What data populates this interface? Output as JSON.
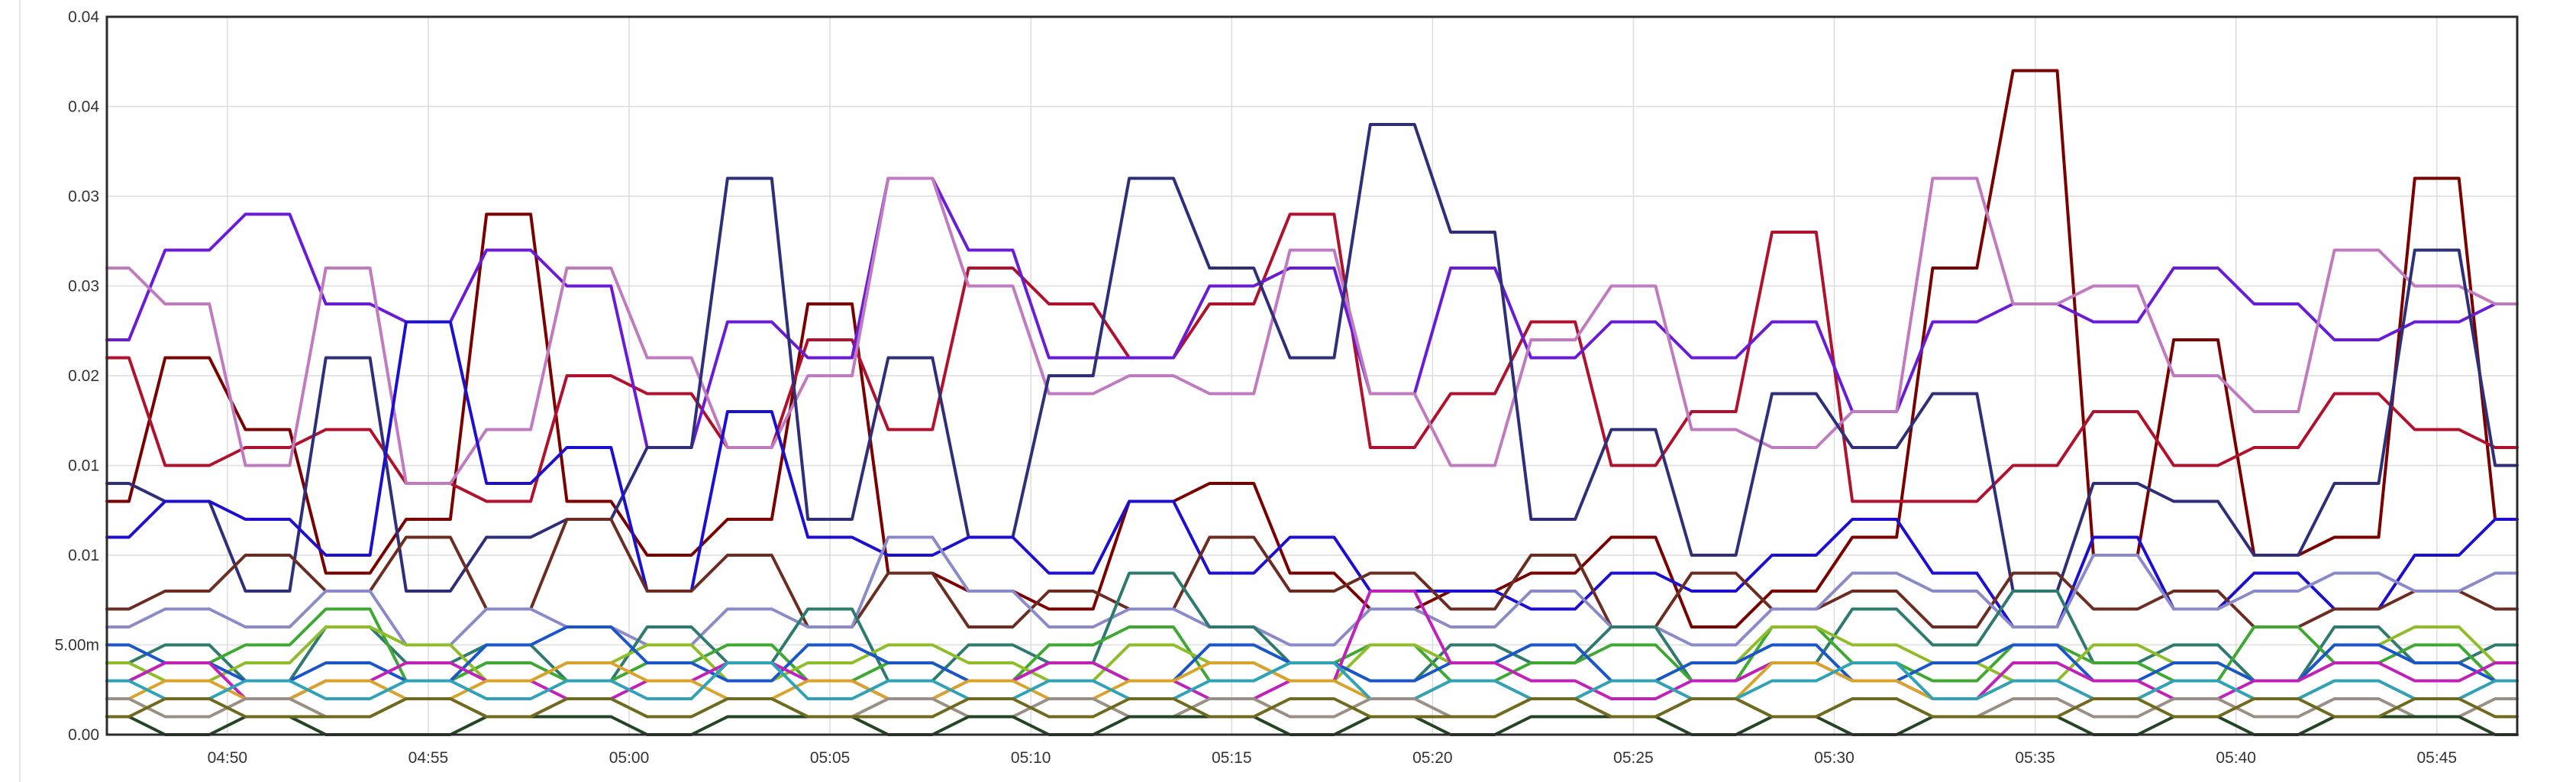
{
  "chart_data": {
    "type": "line",
    "title": "",
    "xlabel": "",
    "ylabel": "",
    "grid": true,
    "legend": "none",
    "y_scale": "linear",
    "ylim": [
      0,
      0.04
    ],
    "y_ticks": [
      {
        "value": 0,
        "label": "0.00"
      },
      {
        "value": 0.005,
        "label": "5.00m"
      },
      {
        "value": 0.01,
        "label": "0.01"
      },
      {
        "value": 0.015,
        "label": "0.01"
      },
      {
        "value": 0.02,
        "label": "0.02"
      },
      {
        "value": 0.025,
        "label": "0.03"
      },
      {
        "value": 0.03,
        "label": "0.03"
      },
      {
        "value": 0.035,
        "label": "0.04"
      },
      {
        "value": 0.04,
        "label": "0.04"
      }
    ],
    "x_range": [
      "04:47",
      "05:47"
    ],
    "x_ticks": [
      "04:50",
      "04:55",
      "05:00",
      "05:05",
      "05:10",
      "05:15",
      "05:20",
      "05:25",
      "05:30",
      "05:35",
      "05:40",
      "05:45"
    ],
    "x": [
      "04:47",
      "04:49",
      "04:51",
      "04:53",
      "04:55",
      "04:57",
      "04:59",
      "05:01",
      "05:03",
      "05:05",
      "05:07",
      "05:09",
      "05:11",
      "05:13",
      "05:15",
      "05:17",
      "05:19",
      "05:21",
      "05:23",
      "05:25",
      "05:27",
      "05:29",
      "05:31",
      "05:33",
      "05:35",
      "05:37",
      "05:39",
      "05:41",
      "05:43",
      "05:45",
      "05:47"
    ],
    "series": [
      {
        "color": "#7a0000",
        "values": [
          0.013,
          0.021,
          0.017,
          0.009,
          0.012,
          0.029,
          0.013,
          0.01,
          0.012,
          0.024,
          0.009,
          0.008,
          0.007,
          0.013,
          0.014,
          0.009,
          0.007,
          0.008,
          0.009,
          0.011,
          0.006,
          0.008,
          0.011,
          0.026,
          0.037,
          0.01,
          0.022,
          0.01,
          0.011,
          0.031,
          0.012
        ]
      },
      {
        "color": "#b0112d",
        "values": [
          0.021,
          0.015,
          0.016,
          0.017,
          0.014,
          0.013,
          0.02,
          0.019,
          0.016,
          0.022,
          0.017,
          0.026,
          0.024,
          0.021,
          0.024,
          0.029,
          0.016,
          0.019,
          0.023,
          0.015,
          0.018,
          0.028,
          0.013,
          0.013,
          0.015,
          0.018,
          0.015,
          0.016,
          0.019,
          0.017,
          0.016
        ]
      },
      {
        "color": "#6a1bd6",
        "values": [
          0.022,
          0.027,
          0.029,
          0.024,
          0.023,
          0.027,
          0.025,
          0.016,
          0.023,
          0.021,
          0.031,
          0.027,
          0.021,
          0.021,
          0.025,
          0.026,
          0.019,
          0.026,
          0.021,
          0.023,
          0.021,
          0.023,
          0.018,
          0.023,
          0.024,
          0.023,
          0.026,
          0.024,
          0.022,
          0.023,
          0.024
        ]
      },
      {
        "color": "#c07ac0",
        "values": [
          0.026,
          0.024,
          0.015,
          0.026,
          0.014,
          0.017,
          0.026,
          0.021,
          0.016,
          0.02,
          0.031,
          0.025,
          0.019,
          0.02,
          0.019,
          0.027,
          0.019,
          0.015,
          0.022,
          0.025,
          0.017,
          0.016,
          0.018,
          0.031,
          0.024,
          0.025,
          0.02,
          0.018,
          0.027,
          0.025,
          0.024
        ]
      },
      {
        "color": "#2e2f78",
        "values": [
          0.014,
          0.013,
          0.008,
          0.021,
          0.008,
          0.011,
          0.012,
          0.016,
          0.031,
          0.012,
          0.021,
          0.011,
          0.02,
          0.031,
          0.026,
          0.021,
          0.034,
          0.028,
          0.012,
          0.017,
          0.01,
          0.019,
          0.016,
          0.019,
          0.008,
          0.014,
          0.013,
          0.01,
          0.014,
          0.027,
          0.015
        ]
      },
      {
        "color": "#1d0fd0",
        "values": [
          0.011,
          0.013,
          0.012,
          0.01,
          0.023,
          0.014,
          0.016,
          0.008,
          0.018,
          0.011,
          0.01,
          0.011,
          0.009,
          0.013,
          0.009,
          0.011,
          0.008,
          0.008,
          0.007,
          0.009,
          0.008,
          0.01,
          0.012,
          0.009,
          0.006,
          0.011,
          0.007,
          0.009,
          0.007,
          0.01,
          0.012
        ]
      },
      {
        "color": "#6b2d22",
        "values": [
          0.007,
          0.008,
          0.01,
          0.008,
          0.011,
          0.007,
          0.012,
          0.008,
          0.01,
          0.006,
          0.009,
          0.006,
          0.008,
          0.007,
          0.011,
          0.008,
          0.009,
          0.007,
          0.01,
          0.006,
          0.009,
          0.007,
          0.008,
          0.006,
          0.009,
          0.007,
          0.008,
          0.006,
          0.007,
          0.008,
          0.007
        ]
      },
      {
        "color": "#8a8ac8",
        "values": [
          0.006,
          0.007,
          0.006,
          0.008,
          0.005,
          0.007,
          0.006,
          0.005,
          0.007,
          0.006,
          0.011,
          0.008,
          0.006,
          0.007,
          0.006,
          0.005,
          0.007,
          0.006,
          0.008,
          0.006,
          0.005,
          0.007,
          0.009,
          0.008,
          0.006,
          0.01,
          0.007,
          0.008,
          0.009,
          0.008,
          0.009
        ]
      },
      {
        "color": "#2f7a6e",
        "values": [
          0.004,
          0.005,
          0.003,
          0.006,
          0.004,
          0.005,
          0.003,
          0.006,
          0.004,
          0.007,
          0.003,
          0.005,
          0.004,
          0.009,
          0.006,
          0.004,
          0.003,
          0.005,
          0.004,
          0.006,
          0.003,
          0.004,
          0.007,
          0.005,
          0.008,
          0.004,
          0.005,
          0.003,
          0.006,
          0.004,
          0.005
        ]
      },
      {
        "color": "#3ea832",
        "values": [
          0.003,
          0.004,
          0.005,
          0.007,
          0.003,
          0.004,
          0.003,
          0.004,
          0.005,
          0.003,
          0.004,
          0.003,
          0.005,
          0.006,
          0.003,
          0.004,
          0.005,
          0.003,
          0.004,
          0.005,
          0.003,
          0.006,
          0.004,
          0.003,
          0.005,
          0.004,
          0.003,
          0.006,
          0.004,
          0.005,
          0.003
        ]
      },
      {
        "color": "#8fbd2a",
        "values": [
          0.004,
          0.003,
          0.004,
          0.006,
          0.005,
          0.003,
          0.004,
          0.005,
          0.003,
          0.004,
          0.005,
          0.004,
          0.003,
          0.005,
          0.004,
          0.003,
          0.005,
          0.004,
          0.005,
          0.003,
          0.004,
          0.006,
          0.005,
          0.004,
          0.003,
          0.005,
          0.004,
          0.003,
          0.005,
          0.006,
          0.004
        ]
      },
      {
        "color": "#1a55c9",
        "values": [
          0.005,
          0.004,
          0.003,
          0.004,
          0.003,
          0.005,
          0.006,
          0.004,
          0.003,
          0.005,
          0.004,
          0.003,
          0.004,
          0.003,
          0.005,
          0.004,
          0.003,
          0.004,
          0.005,
          0.003,
          0.004,
          0.005,
          0.003,
          0.004,
          0.005,
          0.003,
          0.004,
          0.003,
          0.005,
          0.004,
          0.003
        ]
      },
      {
        "color": "#c021b8",
        "values": [
          0.003,
          0.004,
          0.002,
          0.003,
          0.004,
          0.003,
          0.002,
          0.003,
          0.004,
          0.003,
          0.002,
          0.003,
          0.004,
          0.003,
          0.002,
          0.003,
          0.008,
          0.004,
          0.003,
          0.002,
          0.003,
          0.004,
          0.003,
          0.002,
          0.004,
          0.003,
          0.002,
          0.003,
          0.004,
          0.003,
          0.004
        ]
      },
      {
        "color": "#d9a22b",
        "values": [
          0.002,
          0.003,
          0.002,
          0.003,
          0.002,
          0.003,
          0.004,
          0.003,
          0.002,
          0.003,
          0.002,
          0.003,
          0.002,
          0.003,
          0.004,
          0.003,
          0.002,
          0.003,
          0.002,
          0.003,
          0.002,
          0.004,
          0.003,
          0.002,
          0.003,
          0.002,
          0.003,
          0.002,
          0.003,
          0.002,
          0.003
        ]
      },
      {
        "color": "#30a2b8",
        "values": [
          0.003,
          0.002,
          0.003,
          0.002,
          0.003,
          0.002,
          0.003,
          0.002,
          0.004,
          0.002,
          0.003,
          0.002,
          0.003,
          0.002,
          0.003,
          0.004,
          0.002,
          0.003,
          0.002,
          0.003,
          0.002,
          0.003,
          0.004,
          0.002,
          0.003,
          0.002,
          0.003,
          0.002,
          0.003,
          0.002,
          0.003
        ]
      },
      {
        "color": "#9a8f84",
        "values": [
          0.002,
          0.001,
          0.002,
          0.001,
          0.002,
          0.001,
          0.002,
          0.001,
          0.002,
          0.001,
          0.002,
          0.001,
          0.002,
          0.001,
          0.002,
          0.001,
          0.002,
          0.001,
          0.002,
          0.001,
          0.002,
          0.001,
          0.002,
          0.001,
          0.002,
          0.001,
          0.002,
          0.001,
          0.002,
          0.001,
          0.002
        ]
      },
      {
        "color": "#234523",
        "values": [
          0.001,
          0.0,
          0.001,
          0.0,
          0.0,
          0.001,
          0.001,
          0.0,
          0.001,
          0.001,
          0.0,
          0.001,
          0.0,
          0.001,
          0.001,
          0.0,
          0.001,
          0.0,
          0.001,
          0.001,
          0.0,
          0.001,
          0.0,
          0.001,
          0.001,
          0.0,
          0.001,
          0.0,
          0.001,
          0.001,
          0.0
        ]
      },
      {
        "color": "#6f6a1e",
        "values": [
          0.001,
          0.002,
          0.001,
          0.001,
          0.002,
          0.001,
          0.002,
          0.001,
          0.002,
          0.001,
          0.001,
          0.002,
          0.001,
          0.002,
          0.001,
          0.002,
          0.001,
          0.001,
          0.002,
          0.001,
          0.002,
          0.001,
          0.002,
          0.001,
          0.001,
          0.002,
          0.001,
          0.002,
          0.001,
          0.002,
          0.001
        ]
      }
    ]
  }
}
